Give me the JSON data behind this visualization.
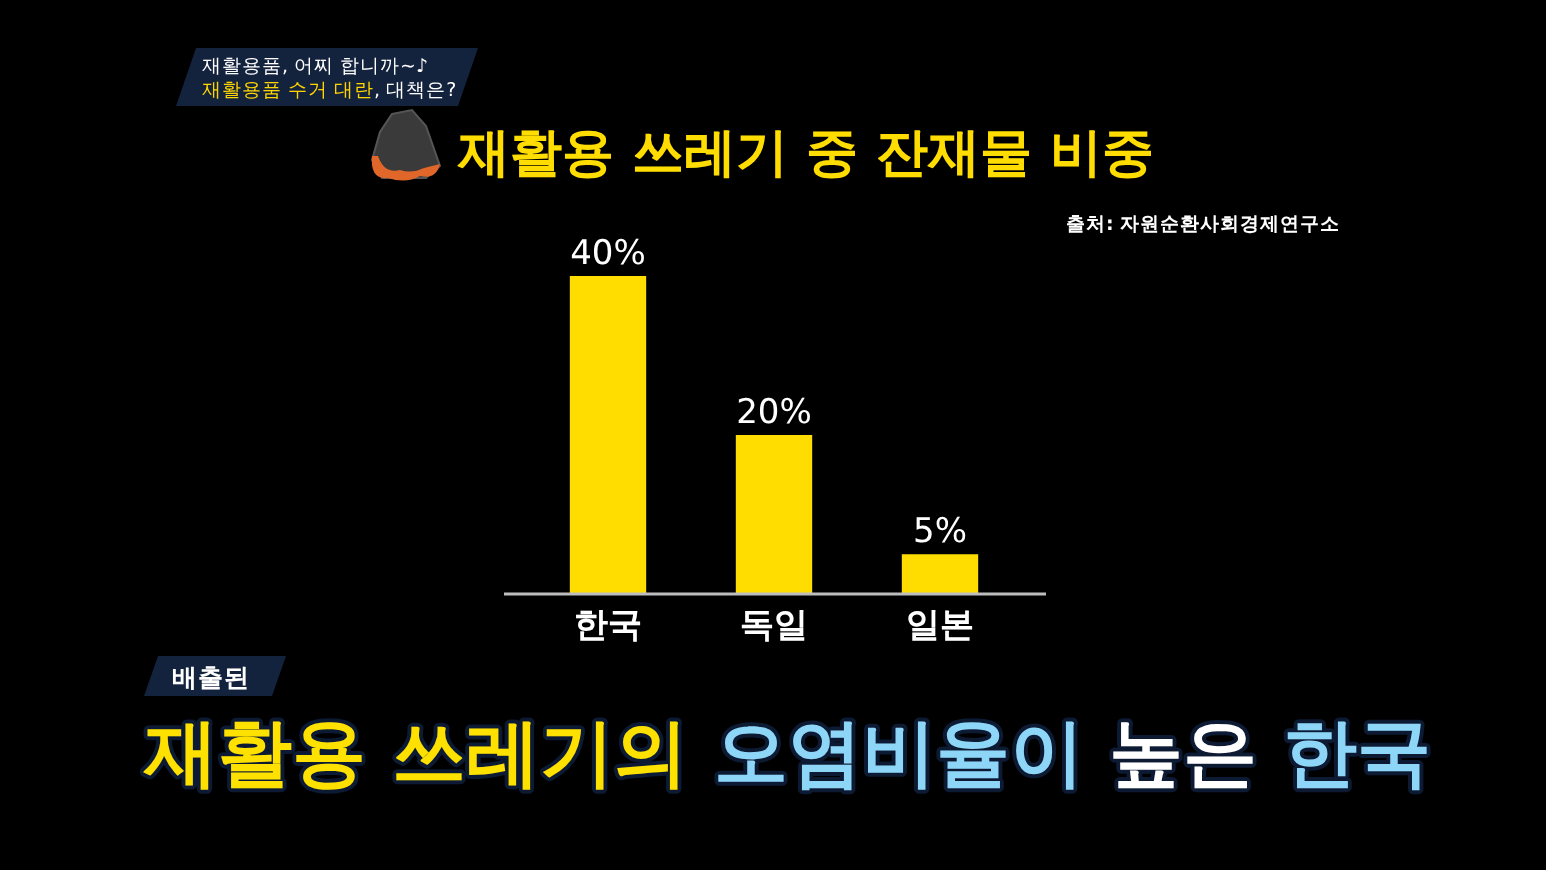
{
  "chart_data": {
    "type": "bar",
    "title": "재활용 쓰레기 중 잔재물 비중",
    "categories": [
      "한국",
      "독일",
      "일본"
    ],
    "values": [
      40,
      20,
      5
    ],
    "value_labels": [
      "40%",
      "20%",
      "5%"
    ],
    "color": "#ffdd00",
    "annotations": [
      "출처: 자원순환사회경제연구소",
      "재활용품, 어찌 합니까~♪",
      "재활용품 수거 대란, 대책은?",
      "배출된",
      "재활용 쓰레기의 오염비율이 높은 한국"
    ]
  }
}
